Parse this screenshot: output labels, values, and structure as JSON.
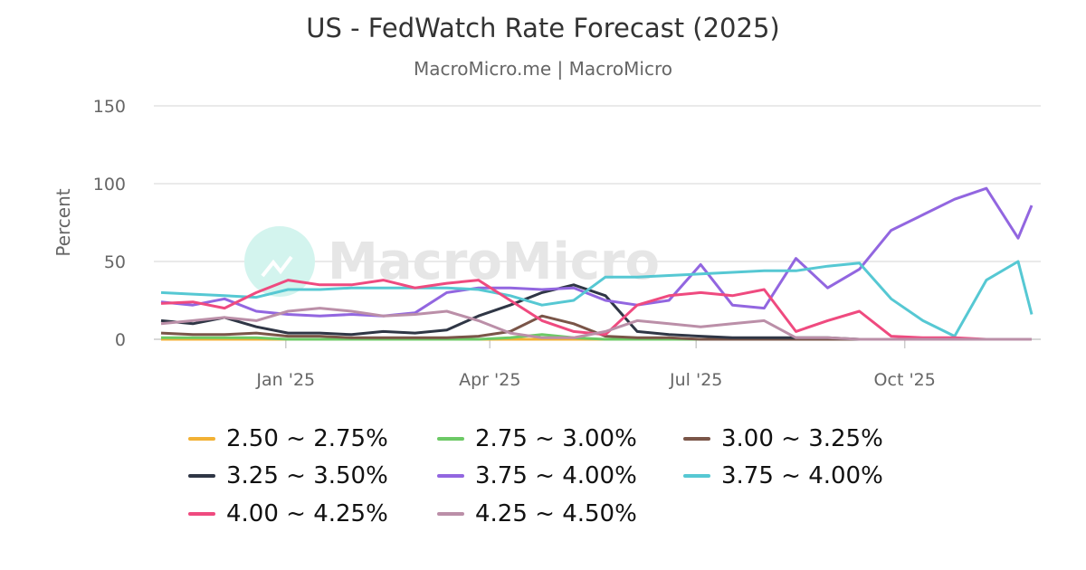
{
  "chart_data": {
    "type": "line",
    "title": "US - FedWatch Rate Forecast (2025)",
    "subtitle": "MacroMicro.me | MacroMicro",
    "watermark": "MacroMicro",
    "ylabel": "Percent",
    "xlabel": "",
    "ylim": [
      0,
      150
    ],
    "yticks": [
      "0",
      "50",
      "100",
      "150"
    ],
    "xticks": [
      {
        "date": "2025-01-01",
        "label": "Jan '25"
      },
      {
        "date": "2025-04-01",
        "label": "Apr '25"
      },
      {
        "date": "2025-07-01",
        "label": "Jul '25"
      },
      {
        "date": "2025-10-01",
        "label": "Oct '25"
      }
    ],
    "xlim": [
      "2024-11-07",
      "2025-11-26"
    ],
    "grid": true,
    "legend_position": "bottom",
    "x": [
      "2024-11-07",
      "2024-11-21",
      "2024-12-05",
      "2024-12-19",
      "2025-01-02",
      "2025-01-16",
      "2025-01-30",
      "2025-02-13",
      "2025-02-27",
      "2025-03-13",
      "2025-03-27",
      "2025-04-10",
      "2025-04-24",
      "2025-05-08",
      "2025-05-22",
      "2025-06-05",
      "2025-06-19",
      "2025-07-03",
      "2025-07-17",
      "2025-07-31",
      "2025-08-14",
      "2025-08-28",
      "2025-09-11",
      "2025-09-25",
      "2025-10-09",
      "2025-10-23",
      "2025-11-06",
      "2025-11-20",
      "2025-11-26"
    ],
    "series": [
      {
        "name": "2.50 ~ 2.75%",
        "color": "#f2b134",
        "values": [
          0,
          0,
          0,
          0,
          0,
          0,
          0,
          0,
          0,
          0,
          0,
          0,
          0,
          0,
          0,
          0,
          0,
          0,
          0,
          0,
          0,
          0,
          0,
          0,
          0,
          0,
          0,
          0,
          0
        ]
      },
      {
        "name": "2.75 ~ 3.00%",
        "color": "#6cc965",
        "values": [
          1,
          1,
          1,
          1,
          0,
          0,
          0,
          0,
          0,
          0,
          0,
          1,
          3,
          1,
          0,
          0,
          0,
          0,
          0,
          0,
          0,
          0,
          0,
          0,
          0,
          0,
          0,
          0,
          0
        ]
      },
      {
        "name": "3.00 ~ 3.25%",
        "color": "#7a5548",
        "values": [
          4,
          3,
          3,
          4,
          2,
          2,
          1,
          1,
          1,
          1,
          2,
          5,
          15,
          10,
          2,
          1,
          1,
          0,
          0,
          0,
          0,
          0,
          0,
          0,
          0,
          0,
          0,
          0,
          0
        ]
      },
      {
        "name": "3.25 ~ 3.50%",
        "color": "#2f3645",
        "values": [
          12,
          10,
          14,
          8,
          4,
          4,
          3,
          5,
          4,
          6,
          15,
          22,
          30,
          35,
          28,
          5,
          3,
          2,
          1,
          1,
          1,
          1,
          0,
          0,
          0,
          0,
          0,
          0,
          0
        ]
      },
      {
        "name": "3.75 ~ 4.00%",
        "color": "#9266e0",
        "values": [
          24,
          22,
          26,
          18,
          16,
          15,
          16,
          15,
          17,
          30,
          33,
          33,
          32,
          33,
          25,
          22,
          25,
          48,
          22,
          20,
          52,
          33,
          45,
          70,
          80,
          90,
          97,
          65,
          86
        ]
      },
      {
        "name": "3.75 ~ 4.00%",
        "color": "#56c8d3",
        "values": [
          30,
          29,
          28,
          27,
          32,
          32,
          33,
          33,
          33,
          33,
          32,
          28,
          22,
          25,
          40,
          40,
          41,
          42,
          43,
          44,
          44,
          47,
          49,
          26,
          12,
          2,
          38,
          50,
          16
        ]
      },
      {
        "name": "4.00 ~ 4.25%",
        "color": "#ef4a7f",
        "values": [
          23,
          24,
          20,
          30,
          38,
          35,
          35,
          38,
          33,
          36,
          38,
          25,
          12,
          5,
          3,
          22,
          28,
          30,
          28,
          32,
          5,
          12,
          18,
          2,
          1,
          1,
          0,
          0,
          0
        ]
      },
      {
        "name": "4.25 ~ 4.50%",
        "color": "#bb8fa8",
        "values": [
          10,
          12,
          14,
          12,
          18,
          20,
          18,
          15,
          16,
          18,
          12,
          4,
          1,
          1,
          5,
          12,
          10,
          8,
          10,
          12,
          1,
          1,
          0,
          0,
          0,
          0,
          0,
          0,
          0
        ]
      }
    ]
  }
}
